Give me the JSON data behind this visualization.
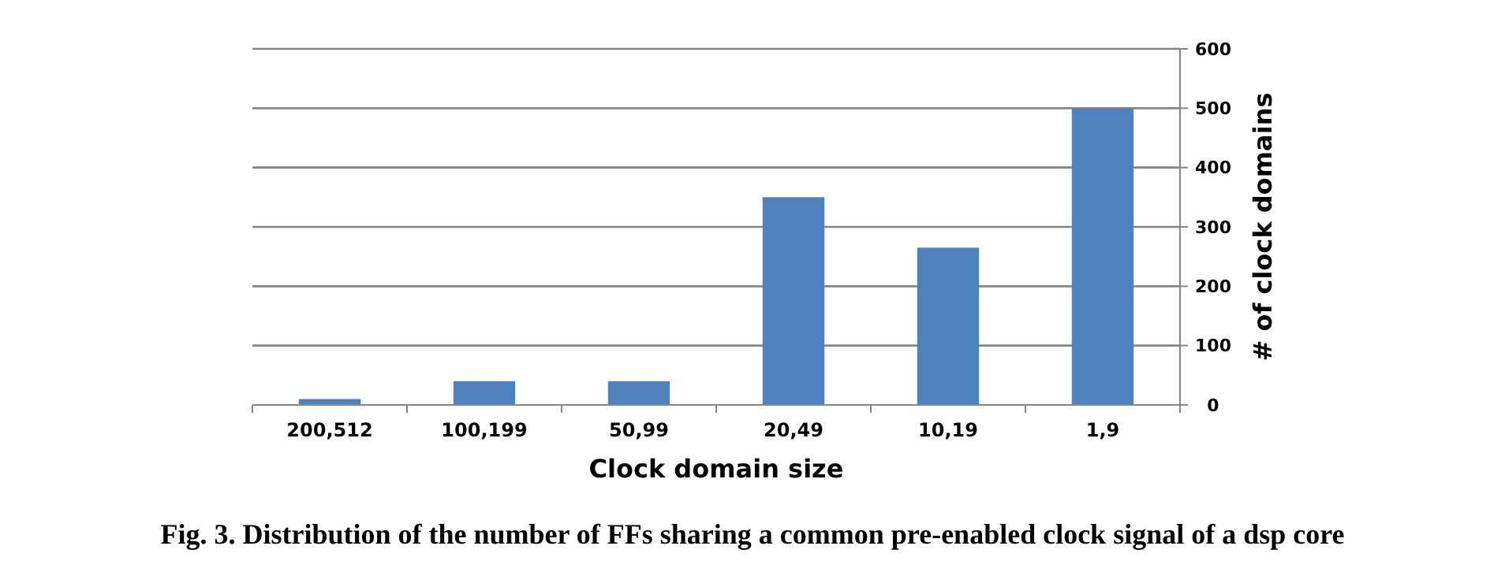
{
  "chart_data": {
    "type": "bar",
    "xlabel": "Clock domain size",
    "ylabel": "# of clock domains",
    "categories": [
      "200,512",
      "100,199",
      "50,99",
      "20,49",
      "10,19",
      "1,9"
    ],
    "values": [
      10,
      40,
      40,
      350,
      265,
      500
    ],
    "color": "#4f81bd",
    "ylim": [
      0,
      600
    ],
    "yticks": [
      0,
      100,
      200,
      300,
      400,
      500,
      600
    ],
    "grid": "y",
    "annotations": [
      "Fig. 3. Distribution of the number of FFs sharing a common pre-enabled clock signal of a dsp core"
    ]
  }
}
